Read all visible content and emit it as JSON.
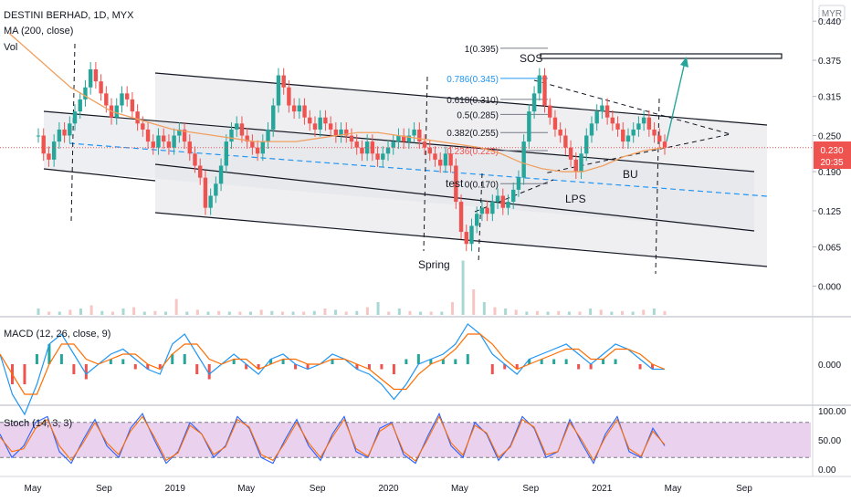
{
  "header": {
    "symbol_line": "DESTINI BERHAD, 1D, MYX",
    "ma_line": "MA (200, close)",
    "vol_label": "Vol",
    "currency": "MYR"
  },
  "price_badge": {
    "value": "0.230",
    "countdown": "20:35"
  },
  "colors": {
    "candle_up": "#26a69a",
    "candle_down": "#ef5350",
    "ma": "#f0a060",
    "channel_line": "#131722",
    "mid_line": "#2196f3",
    "arrow": "#26a69a",
    "macd": "#2196f3",
    "signal": "#ff6d00",
    "stoch_k": "#2962ff",
    "stoch_d": "#ff6d00",
    "stoch_band": "#e1bee7",
    "price_line": "#ef5350"
  },
  "annotations": {
    "sos": "SOS",
    "test": "test",
    "spring": "Spring",
    "lps": "LPS",
    "bu": "BU"
  },
  "fib_levels": [
    {
      "ratio": "1",
      "price": 0.395,
      "label": "1(0.395)"
    },
    {
      "ratio": "0.786",
      "price": 0.345,
      "label": "0.786(0.345)"
    },
    {
      "ratio": "0.618",
      "price": 0.31,
      "label": "0.618(0.310)"
    },
    {
      "ratio": "0.5",
      "price": 0.285,
      "label": "0.5(0.285)"
    },
    {
      "ratio": "0.382",
      "price": 0.255,
      "label": "0.382(0.255)"
    },
    {
      "ratio": "0.236",
      "price": 0.225,
      "label": "0.236(0.225)"
    },
    {
      "ratio": "0",
      "price": 0.17,
      "label": "0(0.170)"
    }
  ],
  "macd_header": "MACD (12, 26, close, 9)",
  "stoch_header": "Stoch (14, 3, 3)",
  "chart_data": [
    {
      "type": "candlestick",
      "title": "DESTINI BERHAD, 1D, MYX",
      "x_ticks": [
        "May",
        "Sep",
        "2019",
        "May",
        "Sep",
        "2020",
        "May",
        "Sep",
        "2021",
        "May",
        "Sep"
      ],
      "y_ticks": [
        "0.440",
        "0.375",
        "0.315",
        "0.250",
        "0.190",
        "0.125",
        "0.065",
        "0.000"
      ],
      "ylim": [
        -0.01,
        0.46
      ],
      "last_price": 0.23,
      "close_series": [
        0.25,
        0.22,
        0.21,
        0.24,
        0.26,
        0.25,
        0.27,
        0.29,
        0.31,
        0.33,
        0.36,
        0.34,
        0.32,
        0.3,
        0.28,
        0.3,
        0.32,
        0.31,
        0.29,
        0.27,
        0.26,
        0.24,
        0.23,
        0.25,
        0.24,
        0.23,
        0.25,
        0.26,
        0.24,
        0.22,
        0.2,
        0.18,
        0.13,
        0.15,
        0.17,
        0.2,
        0.24,
        0.26,
        0.27,
        0.25,
        0.24,
        0.23,
        0.22,
        0.24,
        0.26,
        0.3,
        0.35,
        0.33,
        0.3,
        0.29,
        0.3,
        0.28,
        0.27,
        0.26,
        0.28,
        0.27,
        0.26,
        0.25,
        0.26,
        0.25,
        0.24,
        0.23,
        0.22,
        0.24,
        0.22,
        0.21,
        0.22,
        0.23,
        0.24,
        0.25,
        0.24,
        0.25,
        0.26,
        0.24,
        0.23,
        0.22,
        0.21,
        0.2,
        0.22,
        0.2,
        0.14,
        0.09,
        0.07,
        0.1,
        0.12,
        0.13,
        0.12,
        0.14,
        0.15,
        0.13,
        0.14,
        0.16,
        0.18,
        0.24,
        0.29,
        0.32,
        0.35,
        0.3,
        0.28,
        0.26,
        0.25,
        0.23,
        0.21,
        0.19,
        0.22,
        0.25,
        0.27,
        0.29,
        0.3,
        0.28,
        0.27,
        0.26,
        0.24,
        0.25,
        0.26,
        0.27,
        0.28,
        0.26,
        0.25,
        0.24,
        0.23
      ],
      "ma200_series": [
        0.42,
        0.39,
        0.36,
        0.33,
        0.31,
        0.29,
        0.28,
        0.27,
        0.26,
        0.255,
        0.25,
        0.245,
        0.24,
        0.24,
        0.24,
        0.245,
        0.25,
        0.255,
        0.255,
        0.25,
        0.245,
        0.24,
        0.235,
        0.23,
        0.22,
        0.205,
        0.195,
        0.19,
        0.19,
        0.2,
        0.215,
        0.225,
        0.23
      ],
      "volume_relative": [
        0.1,
        0.05,
        0.05,
        0.08,
        0.1,
        0.15,
        0.06,
        0.05,
        0.1,
        0.12,
        0.05,
        0.06,
        0.05,
        0.25,
        0.05,
        0.08,
        0.05,
        0.06,
        0.05,
        0.05,
        0.05,
        0.08,
        0.06,
        0.05,
        0.05,
        0.05,
        0.06,
        0.1,
        0.08,
        0.05,
        0.06,
        0.12,
        0.2,
        0.05,
        0.1,
        0.06,
        0.05,
        0.05,
        0.05,
        0.2,
        0.85,
        0.4,
        0.2,
        0.12,
        0.1,
        0.08,
        0.05,
        0.06,
        0.05,
        0.06,
        0.05,
        0.05,
        0.1,
        0.08,
        0.05,
        0.06,
        0.05,
        0.08,
        0.1,
        0.06
      ]
    },
    {
      "type": "line",
      "title": "MACD (12, 26, close, 9)",
      "y_ticks": [
        "0.000"
      ],
      "series": [
        {
          "name": "MACD",
          "values": [
            0.01,
            -0.03,
            -0.05,
            -0.02,
            0.02,
            0.03,
            0.01,
            -0.01,
            0.0,
            0.01,
            0.015,
            0.005,
            -0.005,
            -0.01,
            0.02,
            0.03,
            0.01,
            -0.01,
            0.0,
            0.01,
            0.0,
            -0.01,
            0.005,
            0.01,
            0.0,
            -0.005,
            0.0,
            0.01,
            0.005,
            -0.005,
            -0.01,
            -0.02,
            -0.035,
            -0.02,
            0.0,
            0.005,
            0.01,
            0.02,
            0.04,
            0.03,
            0.01,
            0.0,
            -0.01,
            0.005,
            0.01,
            0.015,
            0.02,
            0.01,
            0.0,
            0.01,
            0.02,
            0.015,
            0.005,
            -0.005,
            -0.005
          ]
        },
        {
          "name": "Signal",
          "values": [
            0.01,
            -0.01,
            -0.03,
            -0.03,
            0.0,
            0.02,
            0.02,
            0.005,
            0.0,
            0.005,
            0.01,
            0.01,
            0.0,
            -0.005,
            0.01,
            0.02,
            0.02,
            0.005,
            0.0,
            0.005,
            0.005,
            -0.005,
            0.0,
            0.005,
            0.005,
            0.0,
            0.0,
            0.005,
            0.005,
            0.0,
            -0.005,
            -0.015,
            -0.025,
            -0.025,
            -0.01,
            0.0,
            0.005,
            0.015,
            0.03,
            0.03,
            0.02,
            0.005,
            -0.005,
            0.0,
            0.005,
            0.01,
            0.015,
            0.015,
            0.005,
            0.005,
            0.015,
            0.015,
            0.01,
            0.0,
            -0.005
          ]
        }
      ]
    },
    {
      "type": "line",
      "title": "Stoch (14, 3, 3)",
      "y_ticks": [
        "100.00",
        "50.00",
        "0.00"
      ],
      "ylim": [
        0,
        100
      ],
      "band": [
        20,
        80
      ],
      "series": [
        {
          "name": "%K",
          "values": [
            60,
            20,
            40,
            80,
            90,
            30,
            10,
            50,
            85,
            40,
            20,
            70,
            95,
            50,
            10,
            30,
            80,
            60,
            20,
            40,
            90,
            70,
            20,
            10,
            50,
            85,
            40,
            15,
            60,
            90,
            30,
            20,
            70,
            80,
            25,
            10,
            55,
            95,
            40,
            20,
            80,
            60,
            15,
            40,
            90,
            70,
            20,
            30,
            85,
            45,
            10,
            60,
            90,
            30,
            20,
            70,
            40
          ]
        },
        {
          "name": "%D",
          "values": [
            55,
            30,
            35,
            70,
            85,
            40,
            15,
            45,
            80,
            45,
            25,
            65,
            90,
            55,
            15,
            28,
            75,
            60,
            25,
            38,
            85,
            72,
            25,
            15,
            45,
            80,
            45,
            20,
            55,
            85,
            35,
            22,
            65,
            78,
            30,
            14,
            50,
            90,
            45,
            24,
            75,
            62,
            20,
            38,
            85,
            72,
            25,
            30,
            80,
            50,
            15,
            55,
            85,
            35,
            22,
            65,
            42
          ]
        }
      ]
    }
  ],
  "axis": {
    "currency": "MYR"
  }
}
